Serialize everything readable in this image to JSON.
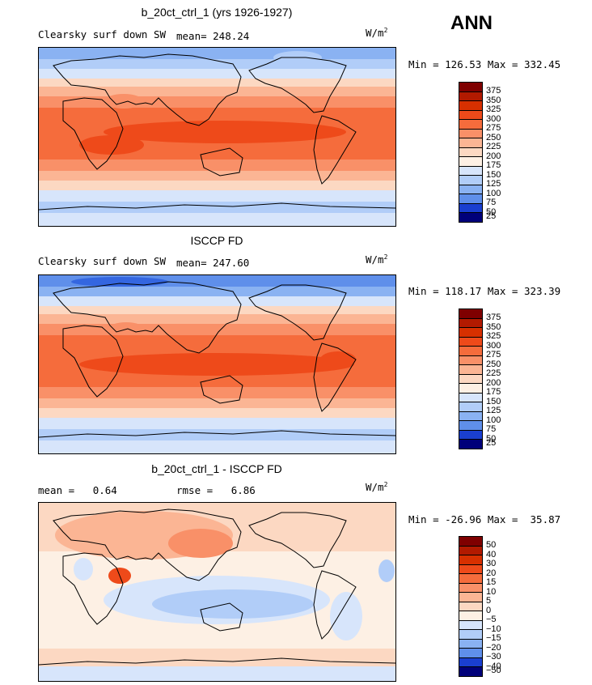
{
  "season": "ANN",
  "panels": [
    {
      "title": "b_20ct_ctrl_1 (yrs 1926-1927)",
      "variable": "Clearsky surf down SW",
      "stat": "mean= 248.24",
      "units_main": "W/m",
      "units_exp": "2",
      "minmax": "Min = 126.53 Max = 332.45",
      "colorbar_labels": [
        "375",
        "350",
        "325",
        "300",
        "275",
        "250",
        "225",
        "200",
        "175",
        "150",
        "125",
        "100",
        "75",
        "50",
        "25"
      ]
    },
    {
      "title": "ISCCP FD",
      "variable": "Clearsky surf down SW",
      "stat": "mean= 247.60",
      "units_main": "W/m",
      "units_exp": "2",
      "minmax": "Min = 118.17 Max = 323.39",
      "colorbar_labels": [
        "375",
        "350",
        "325",
        "300",
        "275",
        "250",
        "225",
        "200",
        "175",
        "150",
        "125",
        "100",
        "75",
        "50",
        "25"
      ]
    },
    {
      "title": "b_20ct_ctrl_1 - ISCCP FD",
      "stat_mean": "mean =   0.64",
      "stat_rmse": "rmse =   6.86",
      "units_main": "W/m",
      "units_exp": "2",
      "minmax": "Min = -26.96 Max =  35.87",
      "colorbar_labels": [
        "50",
        "40",
        "30",
        "20",
        "15",
        "10",
        "5",
        "0",
        "−5",
        "−10",
        "−15",
        "−20",
        "−30",
        "−40",
        "−50"
      ]
    }
  ],
  "colors": {
    "scale": [
      "#7f0000",
      "#b21a00",
      "#d73000",
      "#ee4a1a",
      "#f56c3c",
      "#f99068",
      "#fbb594",
      "#fcd8c2",
      "#fdf0e4",
      "#d7e5fb",
      "#b1cdf8",
      "#8ab2f2",
      "#5f8fea",
      "#3466e0",
      "#1a3fd0",
      "#0a1fb0",
      "#00007a"
    ]
  }
}
